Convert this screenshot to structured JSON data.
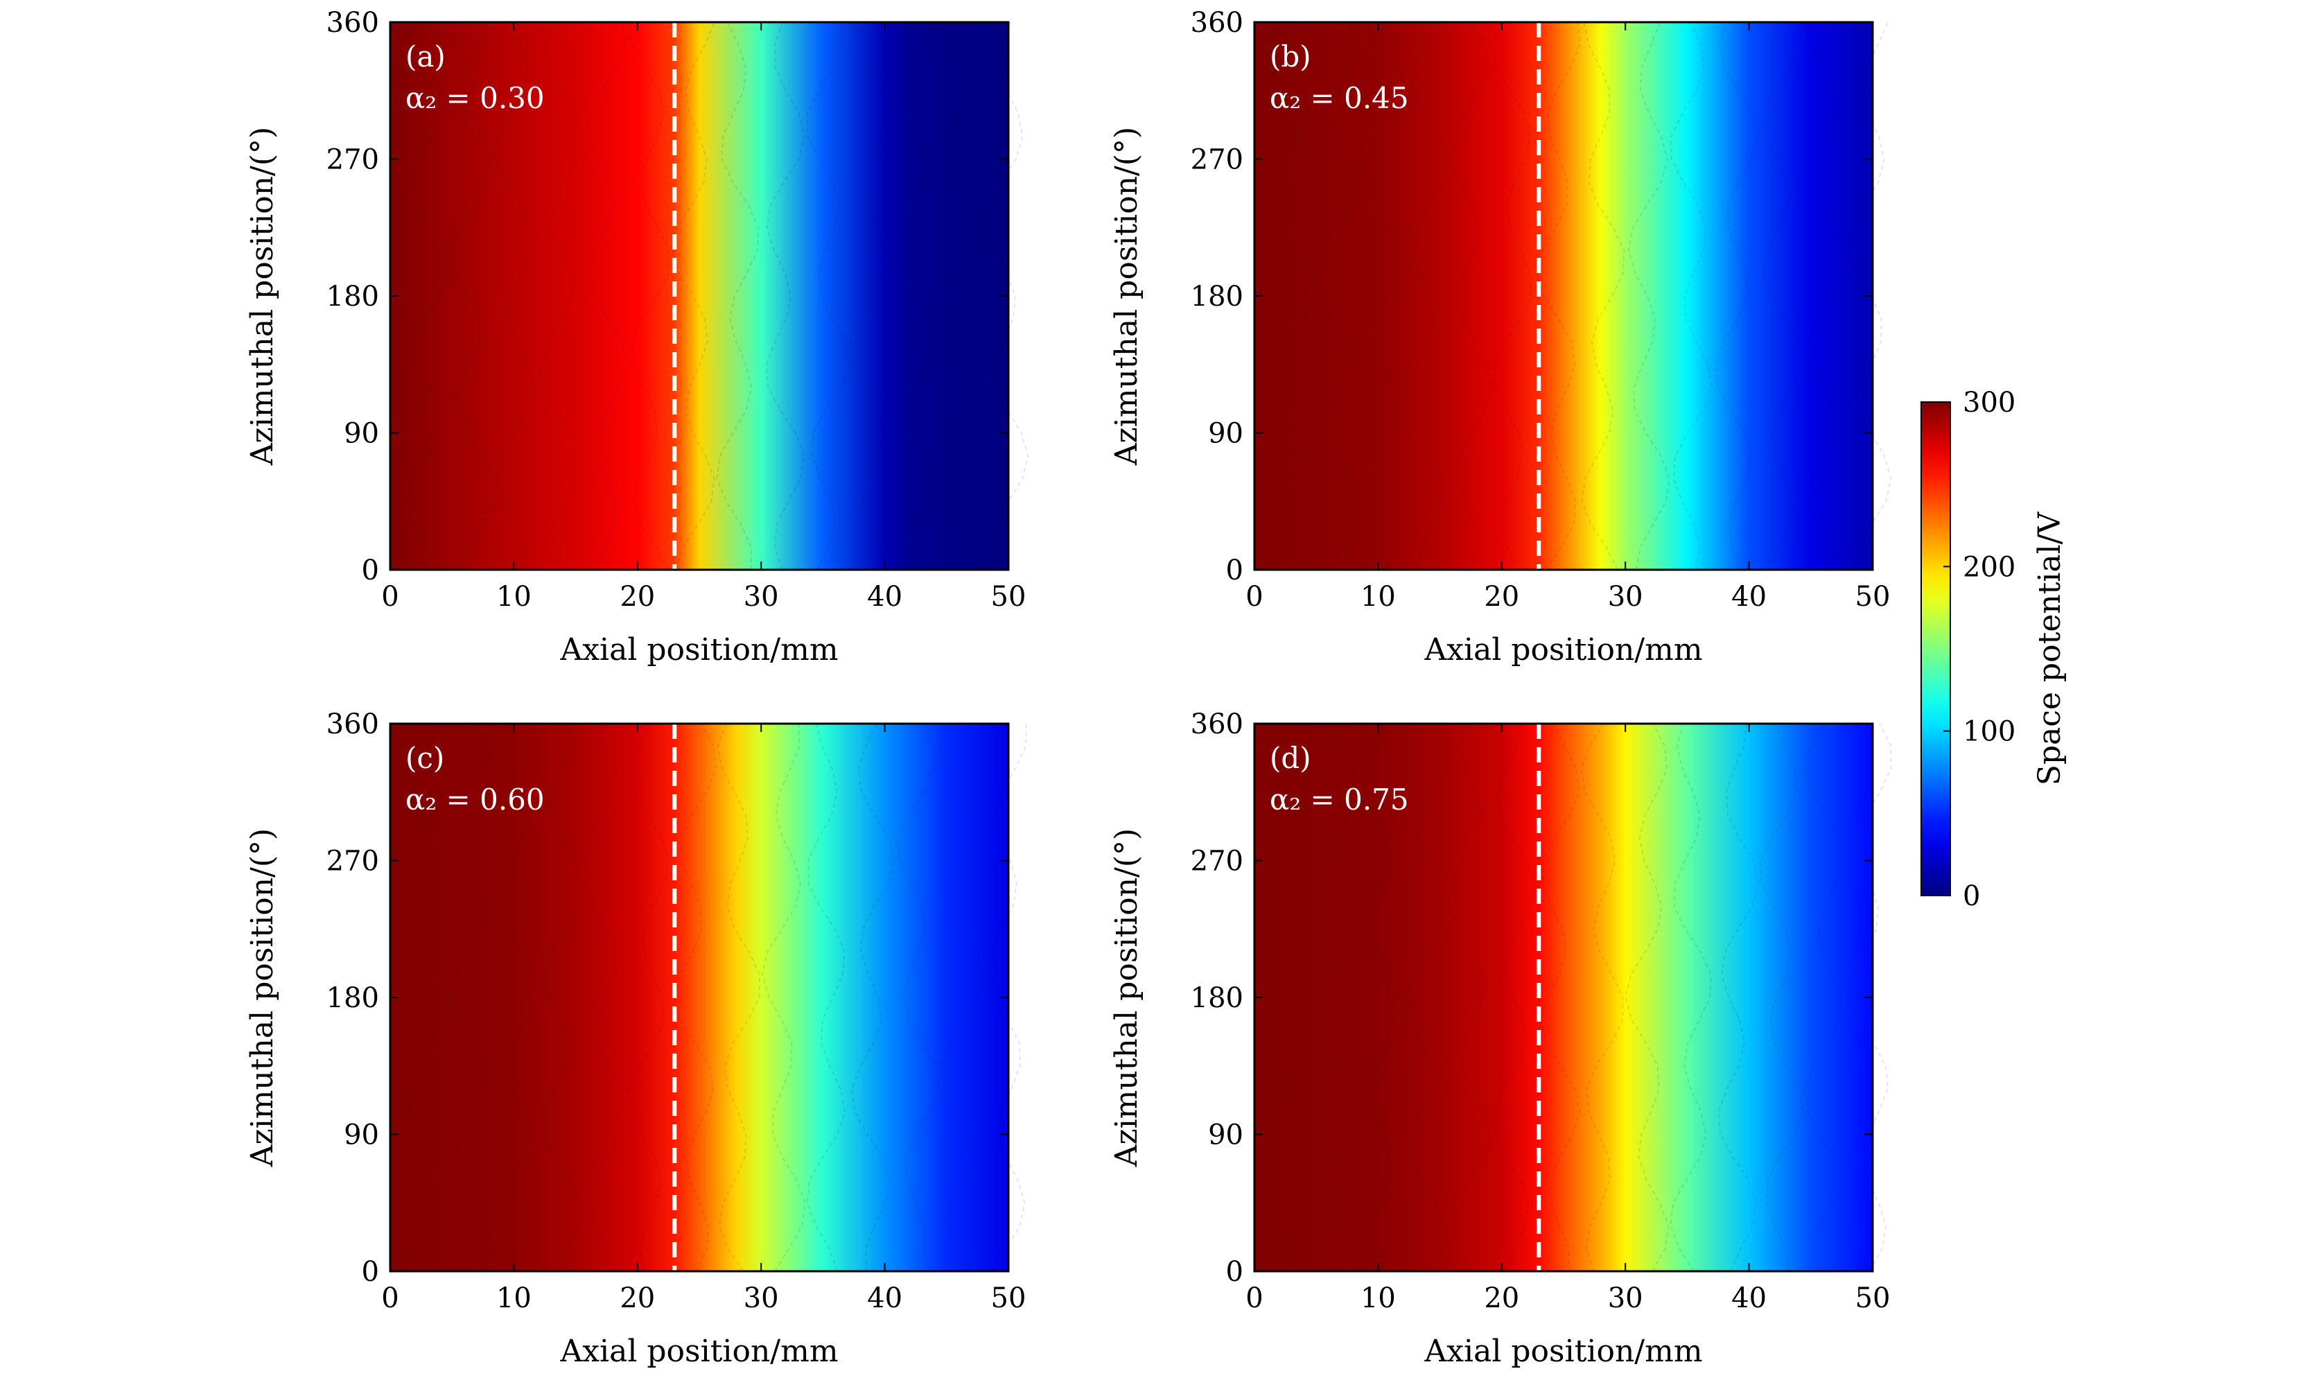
{
  "figure": {
    "colorbar": {
      "label": "Space potential/V",
      "ticks": [
        0,
        100,
        200,
        300
      ],
      "range": [
        0,
        300
      ],
      "colormap": "jet"
    }
  },
  "chart_data": [
    {
      "type": "heatmap",
      "panel": "(a)",
      "annotation": "α₂ = 0.30",
      "xlabel": "Axial position/mm",
      "ylabel": "Azimuthal position/(°)",
      "xlim": [
        0,
        50
      ],
      "ylim": [
        0,
        360
      ],
      "xticks": [
        0,
        10,
        20,
        30,
        40,
        50
      ],
      "yticks": [
        0,
        90,
        180,
        270,
        360
      ],
      "dashed_line_x": 23,
      "z_unit": "V",
      "z_range": [
        0,
        300
      ],
      "profile_x": [
        0,
        5,
        10,
        15,
        20,
        23,
        25,
        30,
        35,
        40,
        42,
        45,
        50
      ],
      "profile_value": [
        300,
        292,
        283,
        274,
        262,
        245,
        200,
        130,
        65,
        15,
        5,
        2,
        0
      ]
    },
    {
      "type": "heatmap",
      "panel": "(b)",
      "annotation": "α₂ = 0.45",
      "xlabel": "Axial position/mm",
      "ylabel": "Azimuthal position/(°)",
      "xlim": [
        0,
        50
      ],
      "ylim": [
        0,
        360
      ],
      "xticks": [
        0,
        10,
        20,
        30,
        40,
        50
      ],
      "yticks": [
        0,
        90,
        180,
        270,
        360
      ],
      "dashed_line_x": 23,
      "z_unit": "V",
      "z_range": [
        0,
        300
      ],
      "profile_x": [
        0,
        10,
        15,
        20,
        23,
        25,
        28,
        30,
        35,
        40,
        45,
        50
      ],
      "profile_value": [
        300,
        295,
        285,
        270,
        250,
        225,
        185,
        160,
        110,
        60,
        30,
        15
      ]
    },
    {
      "type": "heatmap",
      "panel": "(c)",
      "annotation": "α₂ = 0.60",
      "xlabel": "Axial position/mm",
      "ylabel": "Azimuthal position/(°)",
      "xlim": [
        0,
        50
      ],
      "ylim": [
        0,
        360
      ],
      "xticks": [
        0,
        10,
        20,
        30,
        40,
        50
      ],
      "yticks": [
        0,
        90,
        180,
        270,
        360
      ],
      "dashed_line_x": 23,
      "z_unit": "V",
      "z_range": [
        0,
        300
      ],
      "profile_x": [
        0,
        10,
        15,
        20,
        23,
        25,
        28,
        30,
        35,
        40,
        45,
        50
      ],
      "profile_value": [
        300,
        296,
        288,
        275,
        255,
        235,
        200,
        175,
        125,
        80,
        50,
        30
      ]
    },
    {
      "type": "heatmap",
      "panel": "(d)",
      "annotation": "α₂ = 0.75",
      "xlabel": "Axial position/mm",
      "ylabel": "Azimuthal position/(°)",
      "xlim": [
        0,
        50
      ],
      "ylim": [
        0,
        360
      ],
      "xticks": [
        0,
        10,
        20,
        30,
        40,
        50
      ],
      "yticks": [
        0,
        90,
        180,
        270,
        360
      ],
      "dashed_line_x": 23,
      "z_unit": "V",
      "z_range": [
        0,
        300
      ],
      "profile_x": [
        0,
        10,
        15,
        20,
        23,
        25,
        28,
        30,
        35,
        40,
        45,
        50
      ],
      "profile_value": [
        300,
        297,
        290,
        278,
        260,
        240,
        212,
        190,
        140,
        95,
        60,
        40
      ]
    }
  ]
}
